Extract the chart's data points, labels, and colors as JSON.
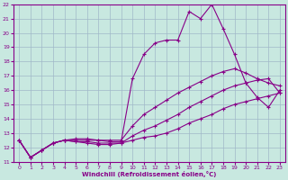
{
  "xlabel": "Windchill (Refroidissement éolien,°C)",
  "xlim": [
    -0.5,
    23.5
  ],
  "ylim": [
    11,
    22
  ],
  "xticks": [
    0,
    1,
    2,
    3,
    4,
    5,
    6,
    7,
    8,
    9,
    10,
    11,
    12,
    13,
    14,
    15,
    16,
    17,
    18,
    19,
    20,
    21,
    22,
    23
  ],
  "yticks": [
    11,
    12,
    13,
    14,
    15,
    16,
    17,
    18,
    19,
    20,
    21,
    22
  ],
  "bg_color": "#c8e8e0",
  "grid_color": "#a0b8c8",
  "line_color": "#880088",
  "lines": [
    {
      "x": [
        0,
        1,
        2,
        3,
        4,
        5,
        6,
        7,
        8,
        9,
        10,
        11,
        12,
        13,
        14,
        15,
        16,
        17,
        18,
        19,
        20,
        21,
        22,
        23
      ],
      "y": [
        12.5,
        11.3,
        11.8,
        12.3,
        12.5,
        12.6,
        12.6,
        12.5,
        12.4,
        12.4,
        16.8,
        18.5,
        19.3,
        19.5,
        19.5,
        21.5,
        21.0,
        22.0,
        20.3,
        18.5,
        16.5,
        15.5,
        14.8,
        16.0
      ]
    },
    {
      "x": [
        0,
        1,
        2,
        3,
        4,
        5,
        6,
        7,
        8,
        9,
        10,
        11,
        12,
        13,
        14,
        15,
        16,
        17,
        18,
        19,
        20,
        21,
        22,
        23
      ],
      "y": [
        12.5,
        11.3,
        11.8,
        12.3,
        12.5,
        12.5,
        12.5,
        12.5,
        12.5,
        12.5,
        13.5,
        14.3,
        14.8,
        15.3,
        15.8,
        16.2,
        16.6,
        17.0,
        17.3,
        17.5,
        17.2,
        16.8,
        16.5,
        16.3
      ]
    },
    {
      "x": [
        0,
        1,
        2,
        3,
        4,
        5,
        6,
        7,
        8,
        9,
        10,
        11,
        12,
        13,
        14,
        15,
        16,
        17,
        18,
        19,
        20,
        21,
        22,
        23
      ],
      "y": [
        12.5,
        11.3,
        11.8,
        12.3,
        12.5,
        12.4,
        12.4,
        12.3,
        12.3,
        12.3,
        12.8,
        13.2,
        13.5,
        13.9,
        14.3,
        14.8,
        15.2,
        15.6,
        16.0,
        16.3,
        16.5,
        16.7,
        16.8,
        15.8
      ]
    },
    {
      "x": [
        0,
        1,
        2,
        3,
        4,
        5,
        6,
        7,
        8,
        9,
        10,
        11,
        12,
        13,
        14,
        15,
        16,
        17,
        18,
        19,
        20,
        21,
        22,
        23
      ],
      "y": [
        12.5,
        11.3,
        11.8,
        12.3,
        12.5,
        12.4,
        12.3,
        12.2,
        12.2,
        12.3,
        12.5,
        12.7,
        12.8,
        13.0,
        13.3,
        13.7,
        14.0,
        14.3,
        14.7,
        15.0,
        15.2,
        15.4,
        15.6,
        15.8
      ]
    }
  ]
}
